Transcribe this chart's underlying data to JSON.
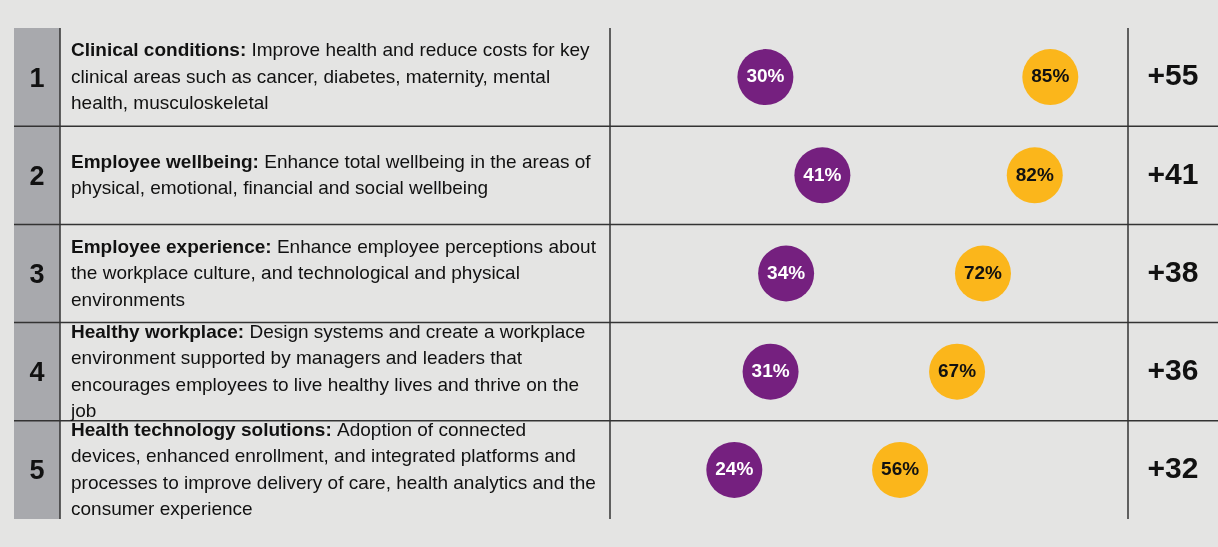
{
  "chart_data": {
    "type": "scatter",
    "orientation": "horizontal",
    "categories": [
      "Clinical conditions: Improve health and reduce costs for key clinical areas such as cancer, diabetes, maternity, mental health, musculoskeletal",
      "Employee wellbeing: Enhance total wellbeing in the areas of physical, emotional, financial and social wellbeing",
      "Employee experience: Enhance employee perceptions about the workplace culture, and technological and physical environments",
      "Healthy workplace: Design systems and create a workplace environment supported by managers and leaders that encourages employees to live healthy lives and thrive on the job",
      "Health technology solutions: Adoption of connected devices, enhanced enrollment, and integrated platforms and processes to improve delivery of care, health analytics and the consumer experience"
    ],
    "y2_categories": [
      "+55",
      "+41",
      "+38",
      "+36",
      "+32"
    ],
    "series": [
      {
        "color": "#75207f",
        "values": [
          30,
          41,
          34,
          31,
          24
        ],
        "value_labels": [
          "30%",
          "41%",
          "34%",
          "31%",
          "24%"
        ]
      },
      {
        "color": "#fbb61b",
        "values": [
          85,
          82,
          72,
          67,
          56
        ],
        "value_labels": [
          "85%",
          "82%",
          "72%",
          "67%",
          "56%"
        ]
      }
    ],
    "annotations": [
      "1",
      "2",
      "3",
      "4",
      "5"
    ],
    "tick_labels": "y",
    "marker": "circle"
  }
}
